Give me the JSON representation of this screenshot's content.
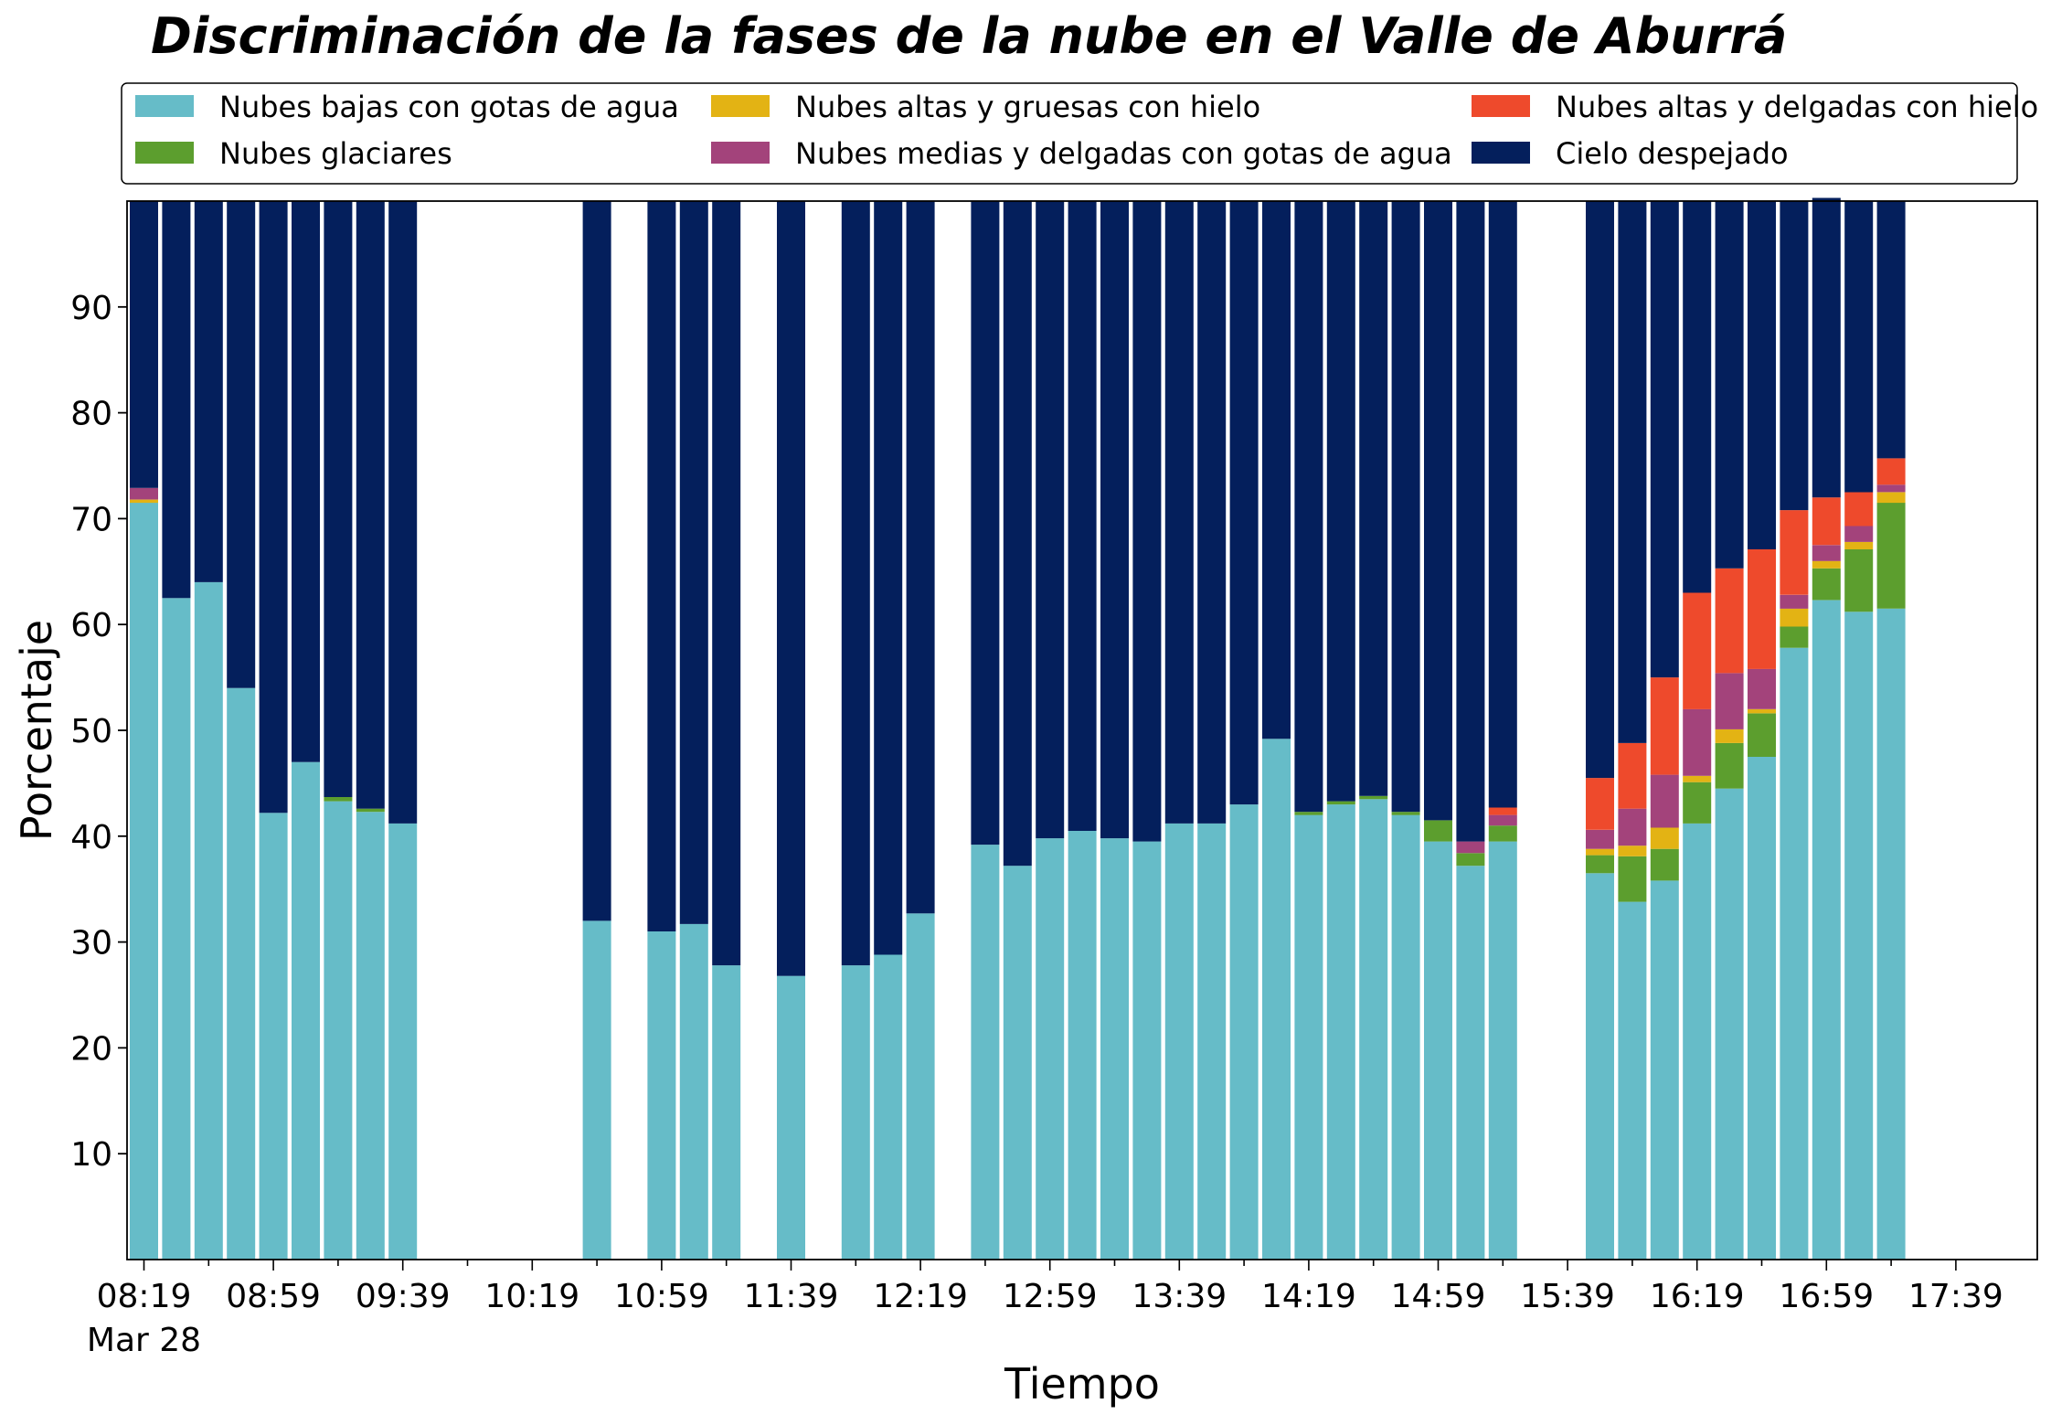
{
  "chart_data": {
    "type": "bar",
    "stacked": true,
    "title": "Discriminación de la fases de la nube en el Valle de Aburrá",
    "xlabel": "Tiempo",
    "ylabel": "Porcentaje",
    "ylim": [
      0,
      100
    ],
    "yticks": [
      10,
      20,
      30,
      40,
      50,
      60,
      70,
      80,
      90
    ],
    "grid": false,
    "legend_position": "top",
    "x_start": "08:19",
    "x_interval_minutes": 10,
    "x_date_label": "Mar 28",
    "xticks": [
      "08:19",
      "08:59",
      "09:39",
      "10:19",
      "10:59",
      "11:39",
      "12:19",
      "12:59",
      "13:39",
      "14:19",
      "14:59",
      "15:39",
      "16:19",
      "16:59",
      "17:39"
    ],
    "categories": [
      "08:19",
      "08:29",
      "08:39",
      "08:49",
      "08:59",
      "09:09",
      "09:19",
      "09:29",
      "09:39",
      "09:49",
      "09:59",
      "10:09",
      "10:19",
      "10:29",
      "10:39",
      "10:49",
      "10:59",
      "11:09",
      "11:19",
      "11:29",
      "11:39",
      "11:49",
      "11:59",
      "12:09",
      "12:19",
      "12:29",
      "12:39",
      "12:49",
      "12:59",
      "13:09",
      "13:19",
      "13:29",
      "13:39",
      "13:49",
      "13:59",
      "14:09",
      "14:19",
      "14:29",
      "14:39",
      "14:49",
      "14:59",
      "15:09",
      "15:19",
      "15:29",
      "15:39",
      "15:49",
      "15:59",
      "16:09",
      "16:19",
      "16:29",
      "16:39",
      "16:49",
      "16:59",
      "17:09",
      "17:19",
      "17:29",
      "17:39",
      "17:49"
    ],
    "series": [
      {
        "name": "Nubes bajas con gotas de agua",
        "color": "#66bcc8",
        "values": [
          71.5,
          62.5,
          64.0,
          54.0,
          42.2,
          47.0,
          43.3,
          42.3,
          41.2,
          null,
          null,
          null,
          null,
          null,
          32.0,
          null,
          31.0,
          31.7,
          27.8,
          null,
          26.8,
          null,
          27.8,
          28.8,
          32.7,
          null,
          39.2,
          37.2,
          39.8,
          40.5,
          39.8,
          39.5,
          41.2,
          41.2,
          43.0,
          49.2,
          42.0,
          43.0,
          43.5,
          42.0,
          39.5,
          37.2,
          39.5,
          null,
          null,
          36.5,
          33.8,
          35.8,
          41.2,
          44.5,
          47.5,
          57.8,
          62.3,
          61.2,
          61.5,
          null,
          null,
          null
        ]
      },
      {
        "name": "Nubes glaciares",
        "color": "#5c9e2e",
        "values": [
          0,
          0,
          0,
          0,
          0,
          0,
          0.4,
          0.3,
          0,
          null,
          null,
          null,
          null,
          null,
          0,
          null,
          0,
          0,
          0,
          null,
          0,
          null,
          0,
          0,
          0,
          null,
          0,
          0,
          0,
          0,
          0,
          0,
          0,
          0,
          0,
          0,
          0.3,
          0.3,
          0.3,
          0.3,
          2.0,
          1.2,
          1.5,
          null,
          null,
          1.7,
          4.3,
          3.0,
          3.9,
          4.3,
          4.1,
          2.0,
          3.0,
          5.9,
          10.0,
          null,
          null,
          null
        ]
      },
      {
        "name": "Nubes altas y gruesas con hielo",
        "color": "#e3b314",
        "values": [
          0.3,
          0,
          0,
          0,
          0,
          0,
          0,
          0,
          0,
          null,
          null,
          null,
          null,
          null,
          0,
          null,
          0,
          0,
          0,
          null,
          0,
          null,
          0,
          0,
          0,
          null,
          0,
          0,
          0,
          0,
          0,
          0,
          0,
          0,
          0,
          0,
          0,
          0,
          0,
          0,
          0,
          0,
          0,
          null,
          null,
          0.6,
          1.0,
          2.0,
          0.6,
          1.3,
          0.4,
          1.7,
          0.7,
          0.7,
          1.0,
          null,
          null,
          null
        ]
      },
      {
        "name": "Nubes medias y delgadas con gotas de agua",
        "color": "#a3437b",
        "values": [
          1.1,
          0,
          0,
          0,
          0,
          0,
          0,
          0,
          0,
          null,
          null,
          null,
          null,
          null,
          0,
          null,
          0,
          0,
          0,
          null,
          0,
          null,
          0,
          0,
          0,
          null,
          0,
          0,
          0,
          0,
          0,
          0,
          0,
          0,
          0,
          0,
          0,
          0,
          0,
          0,
          0,
          1.1,
          1.0,
          null,
          null,
          1.8,
          3.5,
          5.0,
          6.3,
          5.3,
          3.8,
          1.3,
          1.5,
          1.5,
          0.7,
          null,
          null,
          null
        ]
      },
      {
        "name": "Nubes altas y delgadas con hielo",
        "color": "#ee4a2c",
        "values": [
          0,
          0,
          0,
          0,
          0,
          0,
          0,
          0,
          0,
          null,
          null,
          null,
          null,
          null,
          0,
          null,
          0,
          0,
          0,
          null,
          0,
          null,
          0,
          0,
          0,
          null,
          0,
          0,
          0,
          0,
          0,
          0,
          0,
          0,
          0,
          0,
          0,
          0,
          0,
          0,
          0,
          0,
          0.7,
          null,
          null,
          4.9,
          6.2,
          9.2,
          11.0,
          9.9,
          11.3,
          8.0,
          4.5,
          3.2,
          2.5,
          null,
          null,
          null
        ]
      },
      {
        "name": "Cielo despejado",
        "color": "#041f5c",
        "values": [
          27.1,
          37.5,
          36.0,
          46.0,
          57.8,
          53.0,
          56.3,
          57.4,
          58.8,
          null,
          null,
          null,
          null,
          null,
          68.0,
          null,
          69.0,
          68.3,
          72.2,
          null,
          73.2,
          null,
          72.2,
          71.2,
          67.3,
          null,
          60.8,
          62.8,
          60.2,
          59.5,
          60.2,
          60.5,
          58.8,
          58.8,
          57.0,
          50.8,
          57.7,
          56.7,
          56.2,
          57.7,
          58.5,
          60.5,
          57.3,
          null,
          null,
          54.5,
          51.2,
          45.0,
          37.0,
          34.7,
          32.9,
          29.2,
          28.3,
          27.5,
          24.3,
          null,
          null,
          null
        ]
      }
    ]
  }
}
